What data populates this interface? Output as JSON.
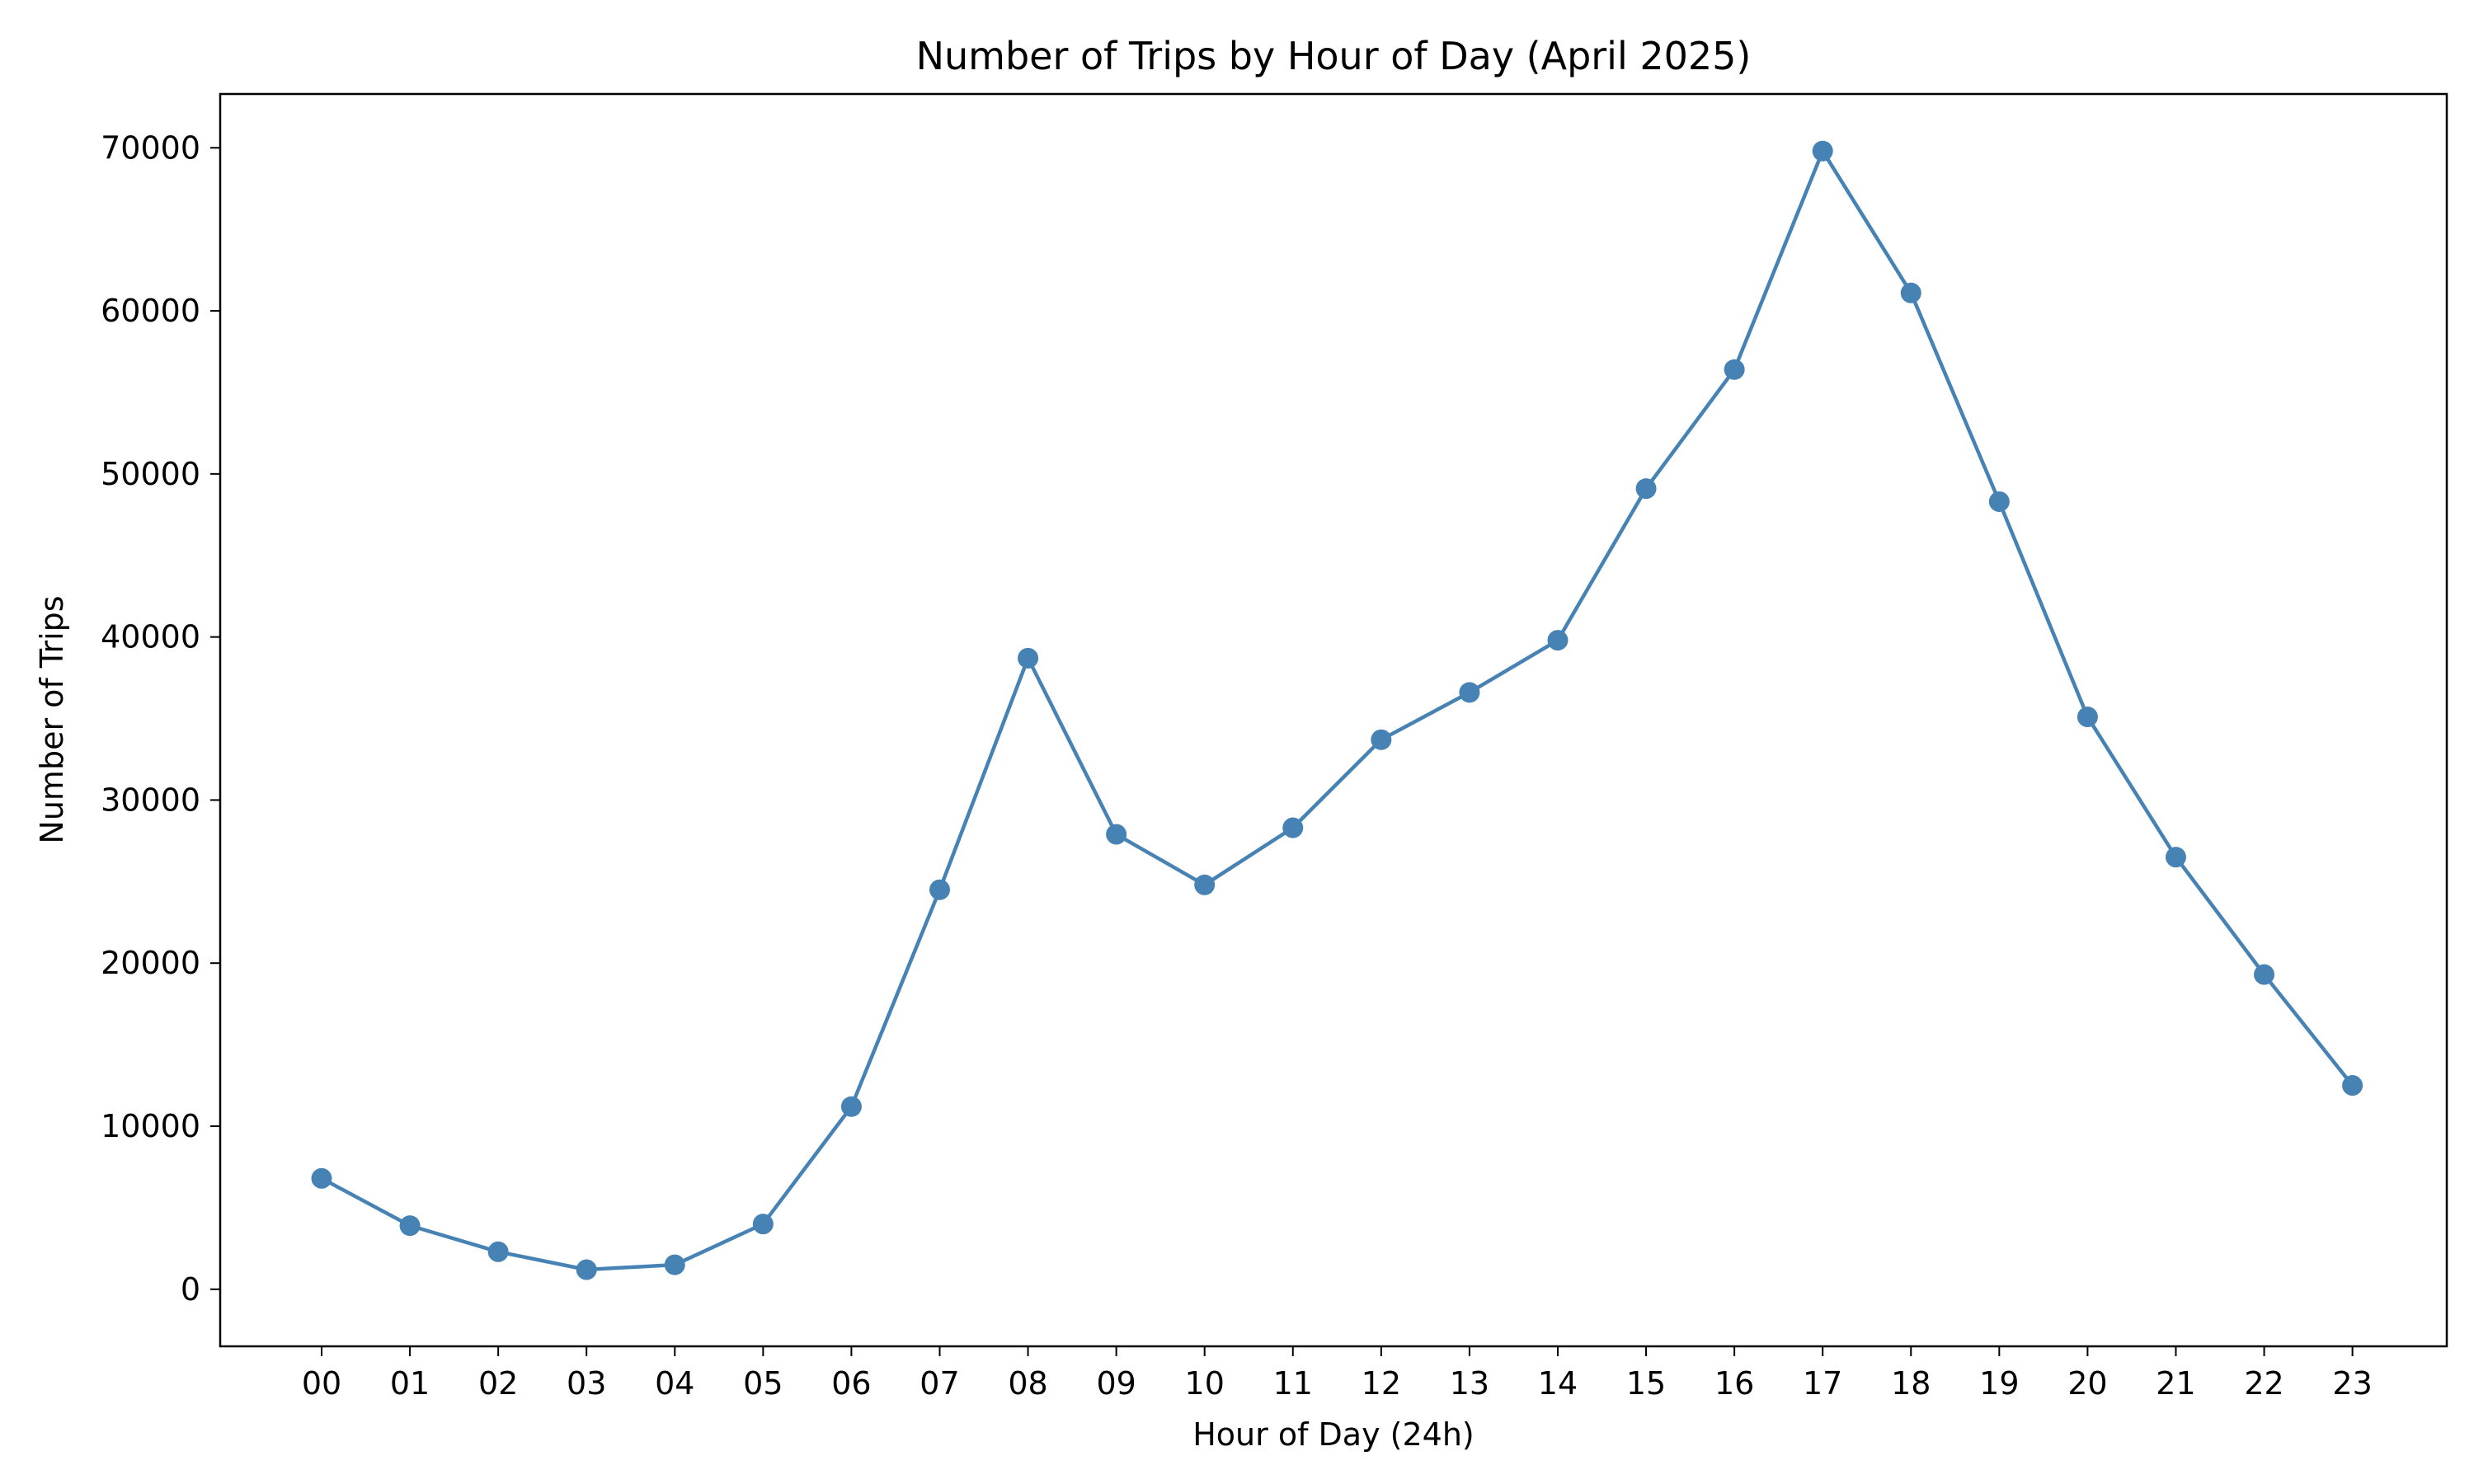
{
  "chart_data": {
    "type": "line",
    "title": "Number of Trips by Hour of Day (April 2025)",
    "xlabel": "Hour of Day (24h)",
    "ylabel": "Number of Trips",
    "categories": [
      "00",
      "01",
      "02",
      "03",
      "04",
      "05",
      "06",
      "07",
      "08",
      "09",
      "10",
      "11",
      "12",
      "13",
      "14",
      "15",
      "16",
      "17",
      "18",
      "19",
      "20",
      "21",
      "22",
      "23"
    ],
    "series": [
      {
        "values": [
          6800,
          3900,
          2300,
          1200,
          1500,
          4000,
          11200,
          24500,
          38700,
          27900,
          24800,
          28300,
          33700,
          36600,
          39800,
          49100,
          56400,
          69800,
          61100,
          48300,
          35100,
          26500,
          19300,
          12500
        ],
        "color": "#4682b4",
        "marker": "circle"
      }
    ],
    "yticks": [
      0,
      10000,
      20000,
      30000,
      40000,
      50000,
      60000,
      70000
    ],
    "ylim": [
      -3500,
      73300
    ],
    "grid": false,
    "legend": "none"
  }
}
